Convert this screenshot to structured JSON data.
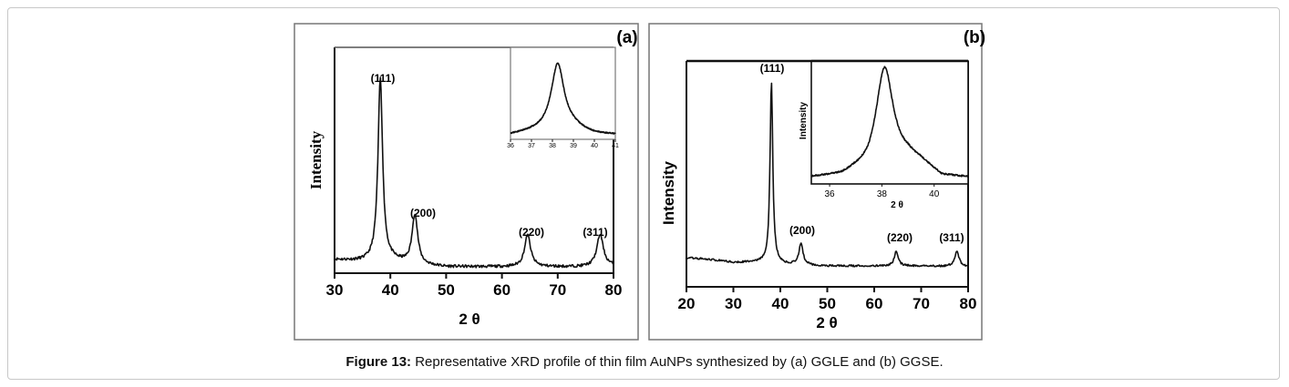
{
  "caption": {
    "label": "Figure 13:",
    "text": " Representative XRD profile of thin film AuNPs synthesized by (a) GGLE and (b) GGSE."
  },
  "chart_data": [
    {
      "type": "line",
      "panel_label": "(a)",
      "xlabel": "2 θ",
      "ylabel": "Intensity",
      "xlim": [
        30,
        80
      ],
      "ylim": [
        0,
        248
      ],
      "xticks": [
        "30",
        "40",
        "50",
        "60",
        "70",
        "80"
      ],
      "baseline": [
        [
          30,
          15
        ],
        [
          35,
          13
        ],
        [
          40,
          14
        ],
        [
          45,
          9
        ],
        [
          50,
          7
        ],
        [
          60,
          7
        ],
        [
          70,
          7
        ],
        [
          75,
          7
        ],
        [
          80,
          8
        ]
      ],
      "peaks": [
        {
          "label": "(111)",
          "x": 38.2,
          "y": 200,
          "fwhm": 1.0
        },
        {
          "label": "(200)",
          "x": 44.4,
          "y": 55,
          "fwhm": 1.2
        },
        {
          "label": "(220)",
          "x": 64.6,
          "y": 35,
          "fwhm": 1.3
        },
        {
          "label": "(311)",
          "x": 77.6,
          "y": 35,
          "fwhm": 1.4
        }
      ],
      "inset": {
        "xlim": [
          36,
          41
        ],
        "ylim": [
          0,
          1
        ],
        "xticks": [
          "36",
          "37",
          "38",
          "39",
          "40",
          "41"
        ],
        "baseline": [
          [
            36,
            0.05
          ],
          [
            37,
            0.08
          ],
          [
            38,
            0.1
          ],
          [
            39,
            0.12
          ],
          [
            40,
            0.06
          ],
          [
            41,
            0.05
          ]
        ],
        "peaks": [
          {
            "x": 38.25,
            "y": 0.72,
            "fwhm": 0.75
          }
        ]
      }
    },
    {
      "type": "line",
      "panel_label": "(b)",
      "xlabel": "2 θ",
      "ylabel": "Intensity",
      "xlim": [
        20,
        80
      ],
      "ylim": [
        0,
        248
      ],
      "xticks": [
        "20",
        "30",
        "40",
        "50",
        "60",
        "70",
        "80"
      ],
      "baseline": [
        [
          20,
          32
        ],
        [
          25,
          30
        ],
        [
          30,
          27
        ],
        [
          35,
          27
        ],
        [
          40,
          25
        ],
        [
          50,
          23
        ],
        [
          60,
          23
        ],
        [
          70,
          23
        ],
        [
          80,
          22
        ]
      ],
      "peaks": [
        {
          "label": "(111)",
          "x": 38.1,
          "y": 200,
          "fwhm": 0.7
        },
        {
          "label": "(200)",
          "x": 44.4,
          "y": 24,
          "fwhm": 1.0
        },
        {
          "label": "(220)",
          "x": 64.7,
          "y": 16,
          "fwhm": 1.0
        },
        {
          "label": "(311)",
          "x": 77.6,
          "y": 17,
          "fwhm": 1.1
        }
      ],
      "inset": {
        "xlabel": "2 θ",
        "ylabel": "Intensity",
        "xlim": [
          35.3,
          41.3
        ],
        "ylim": [
          0,
          1
        ],
        "xticks": [
          "36",
          "38",
          "40"
        ],
        "baseline": [
          [
            35.3,
            0.05
          ],
          [
            36.5,
            0.06
          ],
          [
            37,
            0.09
          ],
          [
            37.5,
            0.09
          ],
          [
            38.1,
            0.15
          ],
          [
            39,
            0.2
          ],
          [
            39.5,
            0.17
          ],
          [
            40.3,
            0.06
          ],
          [
            41.3,
            0.05
          ]
        ],
        "peaks": [
          {
            "x": 38.1,
            "y": 0.8,
            "fwhm": 0.8
          }
        ]
      }
    }
  ]
}
